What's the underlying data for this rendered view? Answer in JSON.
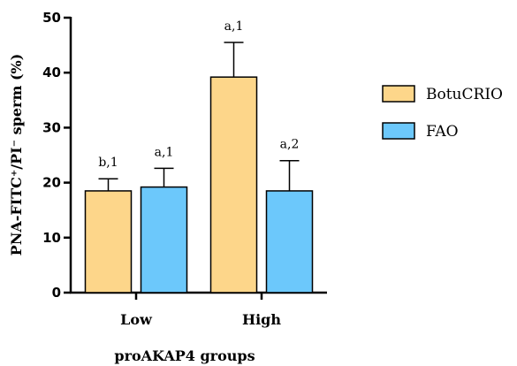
{
  "chart_data": {
    "type": "bar",
    "title": "",
    "xlabel": "proAKAP4 groups",
    "ylabel": "PNA-FITC⁺/PI⁻ sperm (%)",
    "ylim": [
      0,
      50
    ],
    "yticks": [
      0,
      10,
      20,
      30,
      40,
      50
    ],
    "categories": [
      "Low",
      "High"
    ],
    "series": [
      {
        "name": "BotuCRIO",
        "color": "#FDD68A",
        "values": [
          18.5,
          39.2
        ],
        "errors": [
          2.2,
          6.3
        ],
        "labels": [
          "b,1",
          "a,1"
        ]
      },
      {
        "name": "FAO",
        "color": "#6CC8FB",
        "values": [
          19.2,
          18.5
        ],
        "errors": [
          3.4,
          5.5
        ],
        "labels": [
          "a,1",
          "a,2"
        ]
      }
    ],
    "legend": "right",
    "grid": false
  }
}
